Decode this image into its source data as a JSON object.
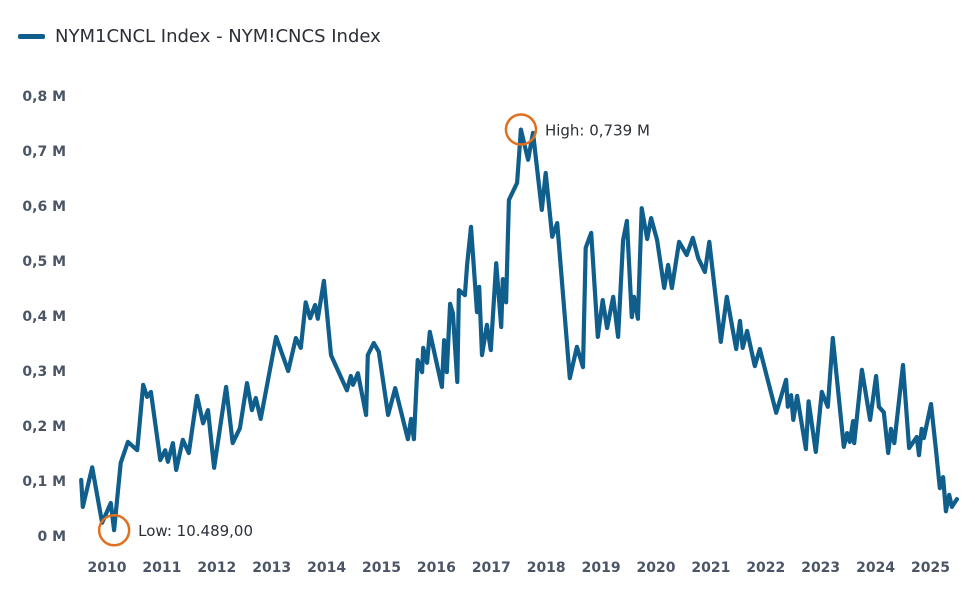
{
  "chart_data": {
    "type": "line",
    "title": "",
    "xlabel": "",
    "ylabel": "",
    "legend": {
      "placement": "top-left",
      "entries": [
        "NYM1CNCL Index - NYM!CNCS Index"
      ]
    },
    "grid": false,
    "ylim": [
      0,
      0.8
    ],
    "y_unit": "M",
    "y_ticks": [
      {
        "value": 0,
        "label": "0 M"
      },
      {
        "value": 0.1,
        "label": "0,1 M"
      },
      {
        "value": 0.2,
        "label": "0,2 M"
      },
      {
        "value": 0.3,
        "label": "0,3 M"
      },
      {
        "value": 0.4,
        "label": "0,4 M"
      },
      {
        "value": 0.5,
        "label": "0,5 M"
      },
      {
        "value": 0.6,
        "label": "0,6 M"
      },
      {
        "value": 0.7,
        "label": "0,7 M"
      },
      {
        "value": 0.8,
        "label": "0,8 M"
      }
    ],
    "x_ticks": [
      "2010",
      "2011",
      "2012",
      "2013",
      "2014",
      "2015",
      "2016",
      "2017",
      "2018",
      "2019",
      "2020",
      "2021",
      "2022",
      "2023",
      "2024",
      "2025"
    ],
    "colors": {
      "line": "#0f5e8c",
      "annotation": "#e0701f",
      "axis_text": "#4b5565"
    },
    "series": [
      {
        "name": "NYM1CNCL Index - NYM!CNCS Index",
        "points": [
          [
            2009.53,
            0.102
          ],
          [
            2009.56,
            0.053
          ],
          [
            2009.73,
            0.125
          ],
          [
            2009.91,
            0.024
          ],
          [
            2010.07,
            0.06
          ],
          [
            2010.13,
            0.0105
          ],
          [
            2010.25,
            0.133
          ],
          [
            2010.38,
            0.171
          ],
          [
            2010.55,
            0.156
          ],
          [
            2010.66,
            0.275
          ],
          [
            2010.73,
            0.253
          ],
          [
            2010.8,
            0.262
          ],
          [
            2010.97,
            0.138
          ],
          [
            2011.06,
            0.156
          ],
          [
            2011.11,
            0.135
          ],
          [
            2011.2,
            0.169
          ],
          [
            2011.26,
            0.12
          ],
          [
            2011.38,
            0.175
          ],
          [
            2011.49,
            0.151
          ],
          [
            2011.64,
            0.255
          ],
          [
            2011.75,
            0.205
          ],
          [
            2011.84,
            0.229
          ],
          [
            2011.95,
            0.124
          ],
          [
            2012.17,
            0.271
          ],
          [
            2012.29,
            0.169
          ],
          [
            2012.42,
            0.196
          ],
          [
            2012.55,
            0.278
          ],
          [
            2012.64,
            0.229
          ],
          [
            2012.71,
            0.251
          ],
          [
            2012.8,
            0.213
          ],
          [
            2013.08,
            0.362
          ],
          [
            2013.3,
            0.3
          ],
          [
            2013.44,
            0.36
          ],
          [
            2013.53,
            0.342
          ],
          [
            2013.62,
            0.425
          ],
          [
            2013.7,
            0.396
          ],
          [
            2013.79,
            0.42
          ],
          [
            2013.84,
            0.395
          ],
          [
            2013.95,
            0.464
          ],
          [
            2014.08,
            0.329
          ],
          [
            2014.37,
            0.265
          ],
          [
            2014.44,
            0.291
          ],
          [
            2014.48,
            0.275
          ],
          [
            2014.57,
            0.296
          ],
          [
            2014.72,
            0.22
          ],
          [
            2014.75,
            0.329
          ],
          [
            2014.86,
            0.351
          ],
          [
            2014.95,
            0.335
          ],
          [
            2015.12,
            0.22
          ],
          [
            2015.25,
            0.269
          ],
          [
            2015.48,
            0.176
          ],
          [
            2015.54,
            0.213
          ],
          [
            2015.59,
            0.176
          ],
          [
            2015.66,
            0.32
          ],
          [
            2015.74,
            0.298
          ],
          [
            2015.76,
            0.342
          ],
          [
            2015.83,
            0.315
          ],
          [
            2015.88,
            0.371
          ],
          [
            2016.1,
            0.271
          ],
          [
            2016.14,
            0.356
          ],
          [
            2016.19,
            0.298
          ],
          [
            2016.25,
            0.422
          ],
          [
            2016.3,
            0.405
          ],
          [
            2016.38,
            0.28
          ],
          [
            2016.41,
            0.447
          ],
          [
            2016.52,
            0.438
          ],
          [
            2016.56,
            0.493
          ],
          [
            2016.63,
            0.562
          ],
          [
            2016.74,
            0.407
          ],
          [
            2016.78,
            0.453
          ],
          [
            2016.83,
            0.329
          ],
          [
            2016.92,
            0.384
          ],
          [
            2016.99,
            0.338
          ],
          [
            2017.09,
            0.496
          ],
          [
            2017.18,
            0.38
          ],
          [
            2017.21,
            0.467
          ],
          [
            2017.27,
            0.425
          ],
          [
            2017.32,
            0.611
          ],
          [
            2017.47,
            0.642
          ],
          [
            2017.54,
            0.739
          ],
          [
            2017.67,
            0.684
          ],
          [
            2017.76,
            0.733
          ],
          [
            2017.92,
            0.593
          ],
          [
            2017.99,
            0.66
          ],
          [
            2018.11,
            0.544
          ],
          [
            2018.2,
            0.569
          ],
          [
            2018.43,
            0.287
          ],
          [
            2018.56,
            0.344
          ],
          [
            2018.67,
            0.307
          ],
          [
            2018.72,
            0.524
          ],
          [
            2018.82,
            0.551
          ],
          [
            2018.94,
            0.362
          ],
          [
            2019.03,
            0.429
          ],
          [
            2019.11,
            0.378
          ],
          [
            2019.22,
            0.435
          ],
          [
            2019.31,
            0.362
          ],
          [
            2019.4,
            0.538
          ],
          [
            2019.47,
            0.573
          ],
          [
            2019.56,
            0.398
          ],
          [
            2019.6,
            0.435
          ],
          [
            2019.67,
            0.395
          ],
          [
            2019.74,
            0.596
          ],
          [
            2019.84,
            0.54
          ],
          [
            2019.91,
            0.578
          ],
          [
            2020.02,
            0.538
          ],
          [
            2020.15,
            0.451
          ],
          [
            2020.22,
            0.493
          ],
          [
            2020.29,
            0.451
          ],
          [
            2020.42,
            0.535
          ],
          [
            2020.56,
            0.511
          ],
          [
            2020.67,
            0.542
          ],
          [
            2020.77,
            0.505
          ],
          [
            2020.89,
            0.48
          ],
          [
            2020.97,
            0.535
          ],
          [
            2021.18,
            0.353
          ],
          [
            2021.29,
            0.435
          ],
          [
            2021.46,
            0.34
          ],
          [
            2021.53,
            0.391
          ],
          [
            2021.58,
            0.342
          ],
          [
            2021.66,
            0.373
          ],
          [
            2021.8,
            0.309
          ],
          [
            2021.89,
            0.34
          ],
          [
            2022.19,
            0.224
          ],
          [
            2022.37,
            0.284
          ],
          [
            2022.4,
            0.235
          ],
          [
            2022.46,
            0.256
          ],
          [
            2022.5,
            0.211
          ],
          [
            2022.57,
            0.255
          ],
          [
            2022.73,
            0.158
          ],
          [
            2022.78,
            0.245
          ],
          [
            2022.91,
            0.153
          ],
          [
            2023.02,
            0.262
          ],
          [
            2023.13,
            0.235
          ],
          [
            2023.22,
            0.36
          ],
          [
            2023.42,
            0.162
          ],
          [
            2023.48,
            0.187
          ],
          [
            2023.53,
            0.171
          ],
          [
            2023.59,
            0.209
          ],
          [
            2023.61,
            0.169
          ],
          [
            2023.75,
            0.302
          ],
          [
            2023.9,
            0.211
          ],
          [
            2024.01,
            0.291
          ],
          [
            2024.06,
            0.235
          ],
          [
            2024.15,
            0.225
          ],
          [
            2024.23,
            0.151
          ],
          [
            2024.28,
            0.195
          ],
          [
            2024.34,
            0.169
          ],
          [
            2024.5,
            0.311
          ],
          [
            2024.61,
            0.16
          ],
          [
            2024.75,
            0.18
          ],
          [
            2024.79,
            0.147
          ],
          [
            2024.84,
            0.195
          ],
          [
            2024.88,
            0.178
          ],
          [
            2025.01,
            0.24
          ],
          [
            2025.1,
            0.156
          ],
          [
            2025.17,
            0.087
          ],
          [
            2025.23,
            0.107
          ],
          [
            2025.28,
            0.045
          ],
          [
            2025.34,
            0.075
          ],
          [
            2025.39,
            0.053
          ],
          [
            2025.48,
            0.067
          ]
        ]
      }
    ],
    "annotations": [
      {
        "type": "high",
        "label": "High: 0,739 M",
        "x": 2017.54,
        "y": 0.739
      },
      {
        "type": "low",
        "label": "Low: 10.489,00",
        "x": 2010.13,
        "y": 0.0105
      }
    ]
  }
}
